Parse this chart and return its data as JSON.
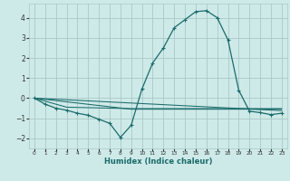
{
  "xlabel": "Humidex (Indice chaleur)",
  "background_color": "#ceeae8",
  "grid_color": "#aac8c8",
  "line_color": "#1a6b6b",
  "xlim": [
    -0.5,
    23.5
  ],
  "ylim": [
    -2.5,
    4.7
  ],
  "xticks": [
    0,
    1,
    2,
    3,
    4,
    5,
    6,
    7,
    8,
    9,
    10,
    11,
    12,
    13,
    14,
    15,
    16,
    17,
    18,
    19,
    20,
    21,
    22,
    23
  ],
  "yticks": [
    -2,
    -1,
    0,
    1,
    2,
    3,
    4
  ],
  "series_main": {
    "x": [
      0,
      1,
      2,
      3,
      4,
      5,
      6,
      7,
      8,
      9,
      10,
      11,
      12,
      13,
      14,
      15,
      16,
      17,
      18,
      19,
      20,
      21,
      22,
      23
    ],
    "y": [
      0.0,
      -0.3,
      -0.5,
      -0.6,
      -0.75,
      -0.85,
      -1.05,
      -1.25,
      -1.95,
      -1.35,
      0.45,
      1.75,
      2.5,
      3.5,
      3.9,
      4.3,
      4.35,
      4.0,
      2.9,
      0.4,
      -0.65,
      -0.72,
      -0.82,
      -0.75
    ]
  },
  "series_lines": [
    {
      "x": [
        0,
        23
      ],
      "y": [
        0.0,
        -0.62
      ]
    },
    {
      "x": [
        0,
        9,
        23
      ],
      "y": [
        0.0,
        -0.55,
        -0.55
      ]
    },
    {
      "x": [
        0,
        3,
        9,
        23
      ],
      "y": [
        0.0,
        -0.45,
        -0.52,
        -0.52
      ]
    }
  ]
}
